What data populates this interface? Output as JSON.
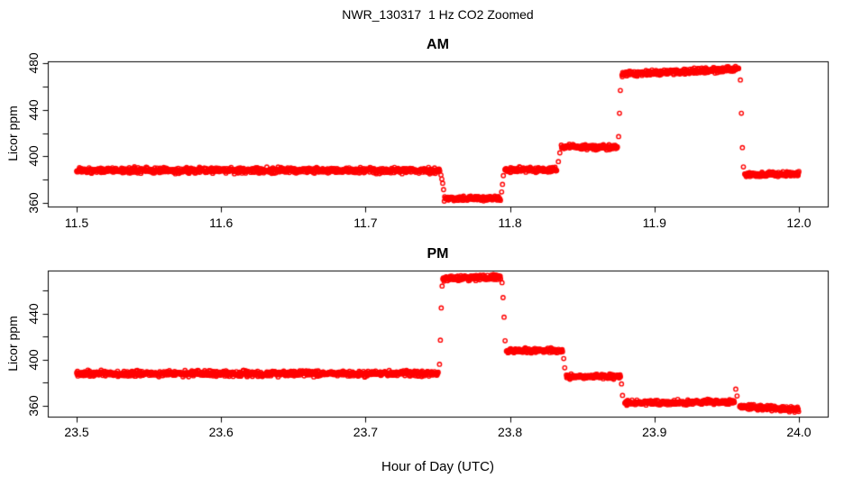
{
  "title": "NWR_130317  1 Hz CO2 Zoomed",
  "x_axis_label": "Hour of Day (UTC)",
  "colors": {
    "points": "#ff0000",
    "axis": "#000000",
    "background": "#ffffff"
  },
  "chart_data": [
    {
      "type": "scatter",
      "marker": "open-circle",
      "title": "AM",
      "ylabel": "Licor ppm",
      "sample_rate_hz": 1,
      "xlim": [
        11.48,
        12.02
      ],
      "ylim": [
        357.0,
        481.5
      ],
      "x_ticks": [
        {
          "v": 11.5,
          "label": "11.5"
        },
        {
          "v": 11.6,
          "label": "11.6"
        },
        {
          "v": 11.7,
          "label": "11.7"
        },
        {
          "v": 11.8,
          "label": "11.8"
        },
        {
          "v": 11.9,
          "label": "11.9"
        },
        {
          "v": 12.0,
          "label": "12.0"
        }
      ],
      "y_ticks": [
        {
          "v": 360,
          "label": "360"
        },
        {
          "v": 380,
          "label": ""
        },
        {
          "v": 400,
          "label": "400"
        },
        {
          "v": 420,
          "label": ""
        },
        {
          "v": 440,
          "label": "440"
        },
        {
          "v": 460,
          "label": ""
        },
        {
          "v": 480,
          "label": "480"
        }
      ],
      "segments": [
        {
          "t0": 11.5,
          "t1": 11.7515,
          "v0": 388.0,
          "v1": 388.0,
          "noise": 1.4
        },
        {
          "t0": 11.7545,
          "t1": 11.7935,
          "v0": 364.0,
          "v1": 364.0,
          "noise": 1.2
        },
        {
          "t0": 11.7965,
          "t1": 11.8325,
          "v0": 388.5,
          "v1": 388.5,
          "noise": 1.2
        },
        {
          "t0": 11.8355,
          "t1": 11.8745,
          "v0": 408.0,
          "v1": 408.0,
          "noise": 1.2
        },
        {
          "t0": 11.8775,
          "t1": 11.9585,
          "v0": 470.5,
          "v1": 475.0,
          "noise": 1.4
        },
        {
          "t0": 11.9625,
          "t1": 12.0,
          "v0": 384.0,
          "v1": 385.0,
          "noise": 1.2
        }
      ],
      "transition_points": [
        [
          11.7522,
          384.0
        ],
        [
          11.7528,
          380.5
        ],
        [
          11.7534,
          377.0
        ],
        [
          11.754,
          371.5
        ],
        [
          11.7942,
          369.5
        ],
        [
          11.7948,
          376.0
        ],
        [
          11.7954,
          383.5
        ],
        [
          11.8335,
          395.5
        ],
        [
          11.8345,
          403.0
        ],
        [
          11.8752,
          417.0
        ],
        [
          11.8758,
          437.0
        ],
        [
          11.8764,
          456.5
        ],
        [
          11.9595,
          465.5
        ],
        [
          11.9602,
          437.0
        ],
        [
          11.9609,
          407.5
        ],
        [
          11.9616,
          391.0
        ]
      ]
    },
    {
      "type": "scatter",
      "marker": "open-circle",
      "title": "PM",
      "ylabel": "Licor ppm",
      "sample_rate_hz": 1,
      "xlim": [
        23.48,
        24.02
      ],
      "ylim": [
        350.5,
        477.5
      ],
      "x_ticks": [
        {
          "v": 23.5,
          "label": "23.5"
        },
        {
          "v": 23.6,
          "label": "23.6"
        },
        {
          "v": 23.7,
          "label": "23.7"
        },
        {
          "v": 23.8,
          "label": "23.8"
        },
        {
          "v": 23.9,
          "label": "23.9"
        },
        {
          "v": 24.0,
          "label": "24.0"
        }
      ],
      "y_ticks": [
        {
          "v": 360,
          "label": "360"
        },
        {
          "v": 380,
          "label": ""
        },
        {
          "v": 400,
          "label": "400"
        },
        {
          "v": 420,
          "label": ""
        },
        {
          "v": 440,
          "label": "440"
        },
        {
          "v": 460,
          "label": ""
        }
      ],
      "segments": [
        {
          "t0": 23.5,
          "t1": 23.7505,
          "v0": 388.0,
          "v1": 388.0,
          "noise": 1.4
        },
        {
          "t0": 23.7535,
          "t1": 23.7935,
          "v0": 470.5,
          "v1": 471.5,
          "noise": 1.4
        },
        {
          "t0": 23.7975,
          "t1": 23.8365,
          "v0": 408.0,
          "v1": 408.0,
          "noise": 1.2
        },
        {
          "t0": 23.839,
          "t1": 23.8765,
          "v0": 385.5,
          "v1": 385.5,
          "noise": 1.2
        },
        {
          "t0": 23.8795,
          "t1": 23.9555,
          "v0": 362.5,
          "v1": 363.5,
          "noise": 1.2
        },
        {
          "t0": 23.959,
          "t1": 24.0,
          "v0": 359.5,
          "v1": 356.5,
          "noise": 1.2
        }
      ],
      "transition_points": [
        [
          23.7512,
          396.0
        ],
        [
          23.7518,
          417.0
        ],
        [
          23.7524,
          445.0
        ],
        [
          23.753,
          464.0
        ],
        [
          23.7945,
          467.0
        ],
        [
          23.7952,
          454.0
        ],
        [
          23.7959,
          437.0
        ],
        [
          23.7966,
          416.5
        ],
        [
          23.8372,
          401.0
        ],
        [
          23.8379,
          393.0
        ],
        [
          23.8772,
          379.0
        ],
        [
          23.8779,
          369.0
        ],
        [
          23.9563,
          374.5
        ],
        [
          23.9572,
          368.5
        ]
      ]
    }
  ]
}
